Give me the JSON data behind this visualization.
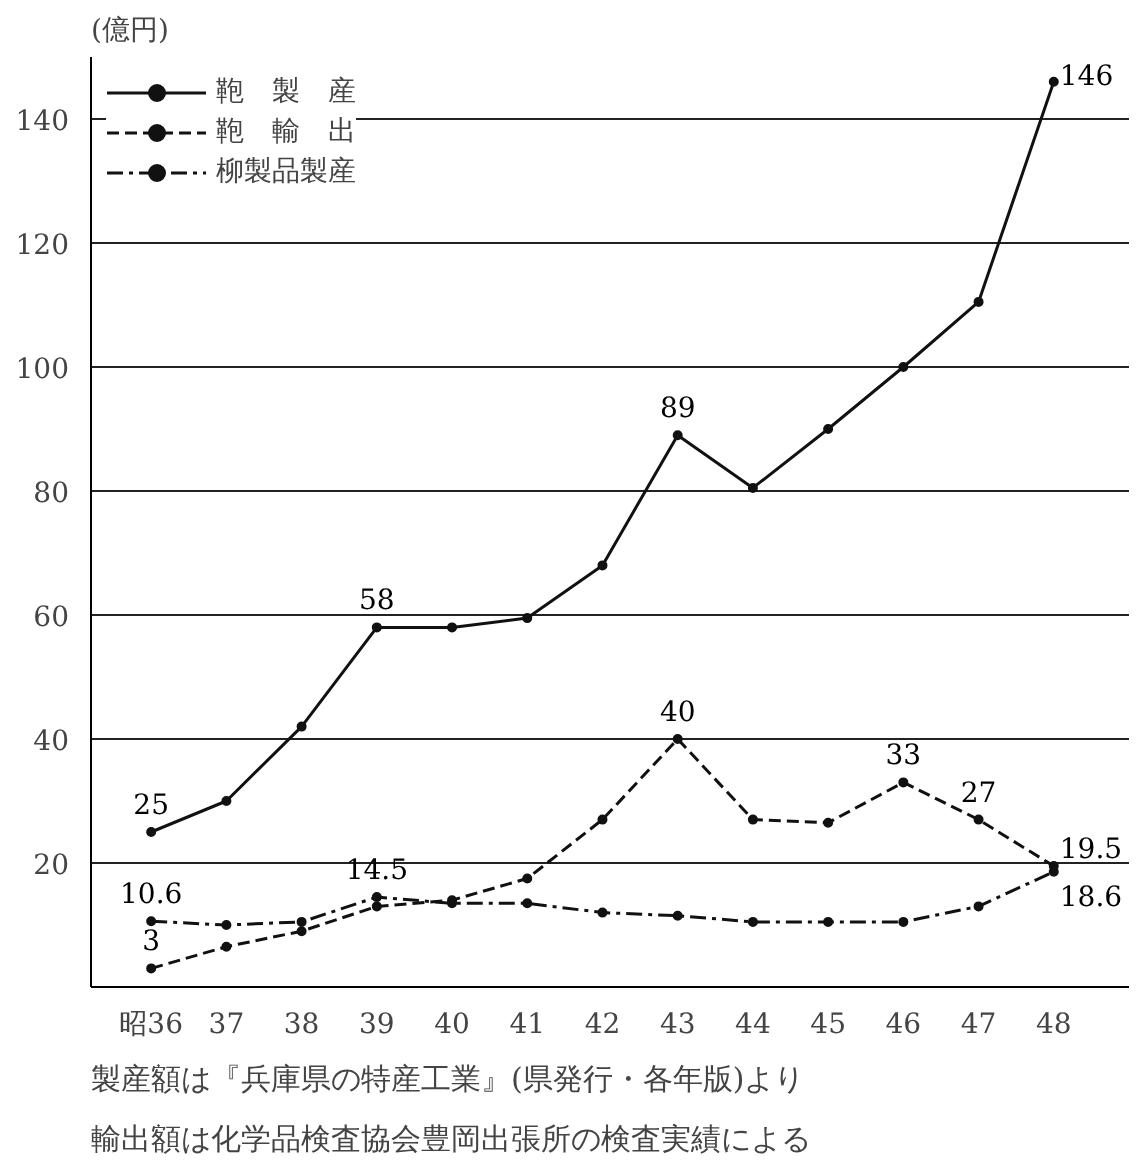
{
  "chart_data": {
    "type": "line",
    "ylabel": "(億円)",
    "categories": [
      "昭36",
      "37",
      "38",
      "39",
      "40",
      "41",
      "42",
      "43",
      "44",
      "45",
      "46",
      "47",
      "48"
    ],
    "series": [
      {
        "name": "鞄　製　産",
        "color": "#111111",
        "line_style": "solid",
        "values": [
          25,
          30,
          42,
          58,
          58,
          59.5,
          68,
          89,
          80.5,
          90,
          100,
          110.5,
          146
        ],
        "value_labels": [
          "25",
          null,
          null,
          "58",
          null,
          null,
          null,
          "89",
          null,
          null,
          null,
          null,
          "146"
        ]
      },
      {
        "name": "鞄　輸　出",
        "color": "#111111",
        "line_style": "dashed",
        "values": [
          3,
          6.5,
          9,
          13,
          14,
          17.5,
          27,
          40,
          27,
          26.5,
          33,
          27,
          19.5
        ],
        "value_labels": [
          "3",
          null,
          null,
          null,
          null,
          null,
          null,
          "40",
          null,
          null,
          "33",
          "27",
          "19.5"
        ]
      },
      {
        "name": "柳製品製産",
        "color": "#111111",
        "line_style": "dashdot",
        "values": [
          10.6,
          10,
          10.5,
          14.5,
          13.5,
          13.5,
          12,
          11.5,
          10.5,
          10.5,
          10.5,
          13,
          18.6
        ],
        "value_labels": [
          "10.6",
          null,
          null,
          "14.5",
          null,
          null,
          null,
          null,
          null,
          null,
          null,
          null,
          "18.6"
        ]
      }
    ],
    "ylim": [
      0,
      150
    ],
    "yticks": [
      20,
      40,
      60,
      80,
      100,
      120,
      140
    ],
    "grid": "y",
    "legend": "top left",
    "marker": "circle",
    "annotations": [
      "製産額は『兵庫県の特産工業』(県発行・各年版)より",
      "輸出額は化学品検査協会豊岡出張所の検査実績による"
    ]
  }
}
